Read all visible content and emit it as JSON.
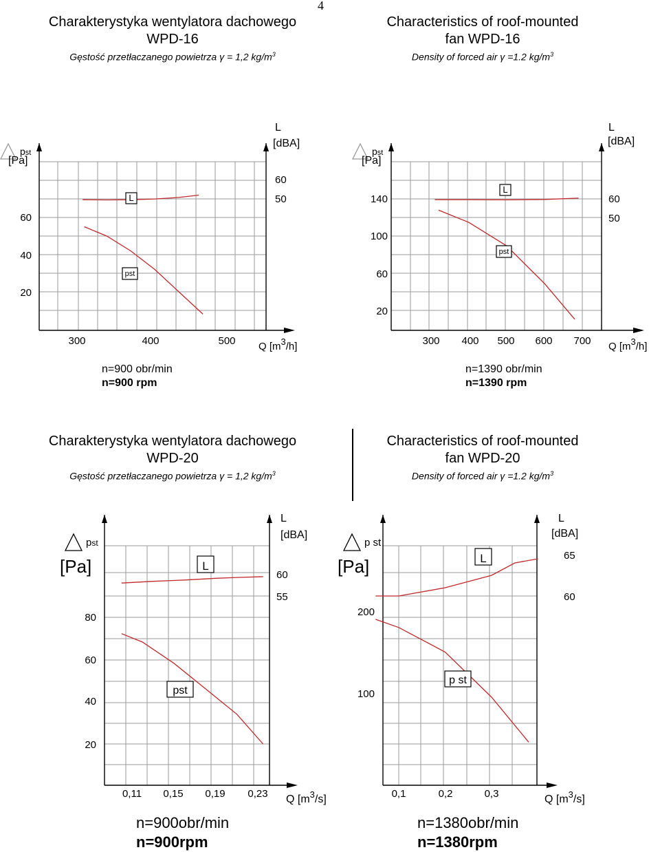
{
  "page_number": "4",
  "top": {
    "left_header": {
      "title_line1": "Charakterystyka wentylatora dachowego",
      "title_line2": "WPD-16",
      "subtitle": "Gęstość przetłaczanego powietrza γ = 1,2 kg/m",
      "subtitle_sup": "3"
    },
    "right_header": {
      "title_line1": "Characteristics of roof-mounted",
      "title_line2": "fan WPD-16",
      "subtitle": "Density of forced air γ =1.2 kg/m",
      "subtitle_sup": "3"
    }
  },
  "bottom": {
    "left_header": {
      "title_line1": "Charakterystyka wentylatora dachowego",
      "title_line2": "WPD-20",
      "subtitle": "Gęstość przetłaczanego powietrza γ = 1,2 kg/m",
      "subtitle_sup": "3"
    },
    "right_header": {
      "title_line1": "Characteristics of roof-mounted",
      "title_line2": "fan WPD-20",
      "subtitle": "Density of forced air γ =1.2 kg/m",
      "subtitle_sup": "3"
    }
  },
  "colors": {
    "curve": "#c0282a",
    "grid": "#9a9a9a",
    "axis": "#000000"
  },
  "chart_data": [
    {
      "id": "c1",
      "type": "line",
      "left_axis": {
        "label_top": "p",
        "label_top_sub": "st",
        "unit": "[Pa]",
        "ticks": [
          "60",
          "40",
          "20"
        ]
      },
      "right_axis": {
        "label_top": "L",
        "unit": "[dBA]",
        "ticks": [
          "60",
          "50"
        ]
      },
      "x_axis": {
        "label": "Q [m",
        "label_sup": "3",
        "label_end": "/h]",
        "ticks": [
          "300",
          "400",
          "500"
        ]
      },
      "series": [
        {
          "name": "L",
          "axis": "right",
          "x": [
            320,
            350,
            380,
            410,
            440,
            465
          ],
          "y": [
            49.2,
            49.1,
            49.2,
            49.6,
            50.4,
            51.6
          ]
        },
        {
          "name": "pst",
          "axis": "left",
          "x": [
            322,
            350,
            380,
            410,
            440,
            470
          ],
          "y": [
            55,
            50,
            42,
            32,
            20,
            8
          ]
        }
      ],
      "series_labels": [
        "L",
        "pst"
      ],
      "speed_line1": "n=900 obr/min",
      "speed_line2": "n=900 rpm"
    },
    {
      "id": "c2",
      "type": "line",
      "left_axis": {
        "label_top": "p",
        "label_top_sub": "st",
        "unit": "[Pa]",
        "ticks": [
          "140",
          "100",
          "60",
          "20"
        ]
      },
      "right_axis": {
        "label_top": "L",
        "unit": "[dBA]",
        "ticks": [
          "60",
          "50"
        ]
      },
      "x_axis": {
        "label": "Q [m",
        "label_sup": "3",
        "label_end": "/h]",
        "ticks": [
          "300",
          "400",
          "500",
          "600",
          "700"
        ]
      },
      "series": [
        {
          "name": "L",
          "axis": "right",
          "x": [
            310,
            400,
            500,
            600,
            690
          ],
          "y": [
            59.6,
            59.6,
            59.5,
            59.7,
            60.4
          ]
        },
        {
          "name": "pst",
          "axis": "left",
          "x": [
            320,
            400,
            500,
            600,
            680
          ],
          "y": [
            128,
            115,
            90,
            50,
            12
          ]
        }
      ],
      "series_labels": [
        "L",
        "pst"
      ],
      "speed_line1": "n=1390 obr/min",
      "speed_line2": "n=1390 rpm"
    },
    {
      "id": "c3",
      "type": "line",
      "left_axis": {
        "label_top": "p",
        "label_top_sub": "st",
        "unit": "[Pa]",
        "ticks": [
          "80",
          "60",
          "40",
          "20"
        ]
      },
      "right_axis": {
        "label_top": "L",
        "unit": "[dBA]",
        "ticks": [
          "60",
          "55"
        ]
      },
      "x_axis": {
        "label": "Q [m",
        "label_sup": "3",
        "label_end": "/s]",
        "ticks": [
          "0,11",
          "0,15",
          "0,19",
          "0,23"
        ]
      },
      "series": [
        {
          "name": "L",
          "axis": "right",
          "x": [
            0.1,
            0.13,
            0.16,
            0.19,
            0.21,
            0.235
          ],
          "y": [
            58.2,
            58.6,
            58.9,
            59.3,
            59.5,
            59.7
          ]
        },
        {
          "name": "pst",
          "axis": "left",
          "x": [
            0.1,
            0.12,
            0.15,
            0.18,
            0.21,
            0.235
          ],
          "y": [
            72,
            68,
            58,
            46,
            34,
            20
          ]
        }
      ],
      "series_labels": [
        "L",
        "pst"
      ],
      "speed_line1": "n=900obr/min",
      "speed_line2": "n=900rpm"
    },
    {
      "id": "c4",
      "type": "line",
      "left_axis": {
        "label_top": "p st",
        "label_top_sub": "",
        "unit": "[Pa]",
        "ticks": [
          "200",
          "100"
        ]
      },
      "right_axis": {
        "label_top": "L",
        "unit": "[dBA]",
        "ticks": [
          "65",
          "60"
        ]
      },
      "x_axis": {
        "label": "Q [m",
        "label_sup": "3",
        "label_end": "/s]",
        "ticks": [
          "0,1",
          "0,2",
          "0,3"
        ]
      },
      "series": [
        {
          "name": "L",
          "axis": "right",
          "x": [
            0.05,
            0.1,
            0.2,
            0.3,
            0.35,
            0.4
          ],
          "y": [
            60,
            60,
            61,
            62.5,
            64,
            64.5
          ]
        },
        {
          "name": "pst",
          "axis": "left",
          "x": [
            0.05,
            0.1,
            0.2,
            0.3,
            0.38
          ],
          "y": [
            190,
            180,
            150,
            95,
            40
          ]
        }
      ],
      "series_labels": [
        "L",
        "p st"
      ],
      "speed_line1": "n=1380obr/min",
      "speed_line2": "n=1380rpm"
    }
  ]
}
